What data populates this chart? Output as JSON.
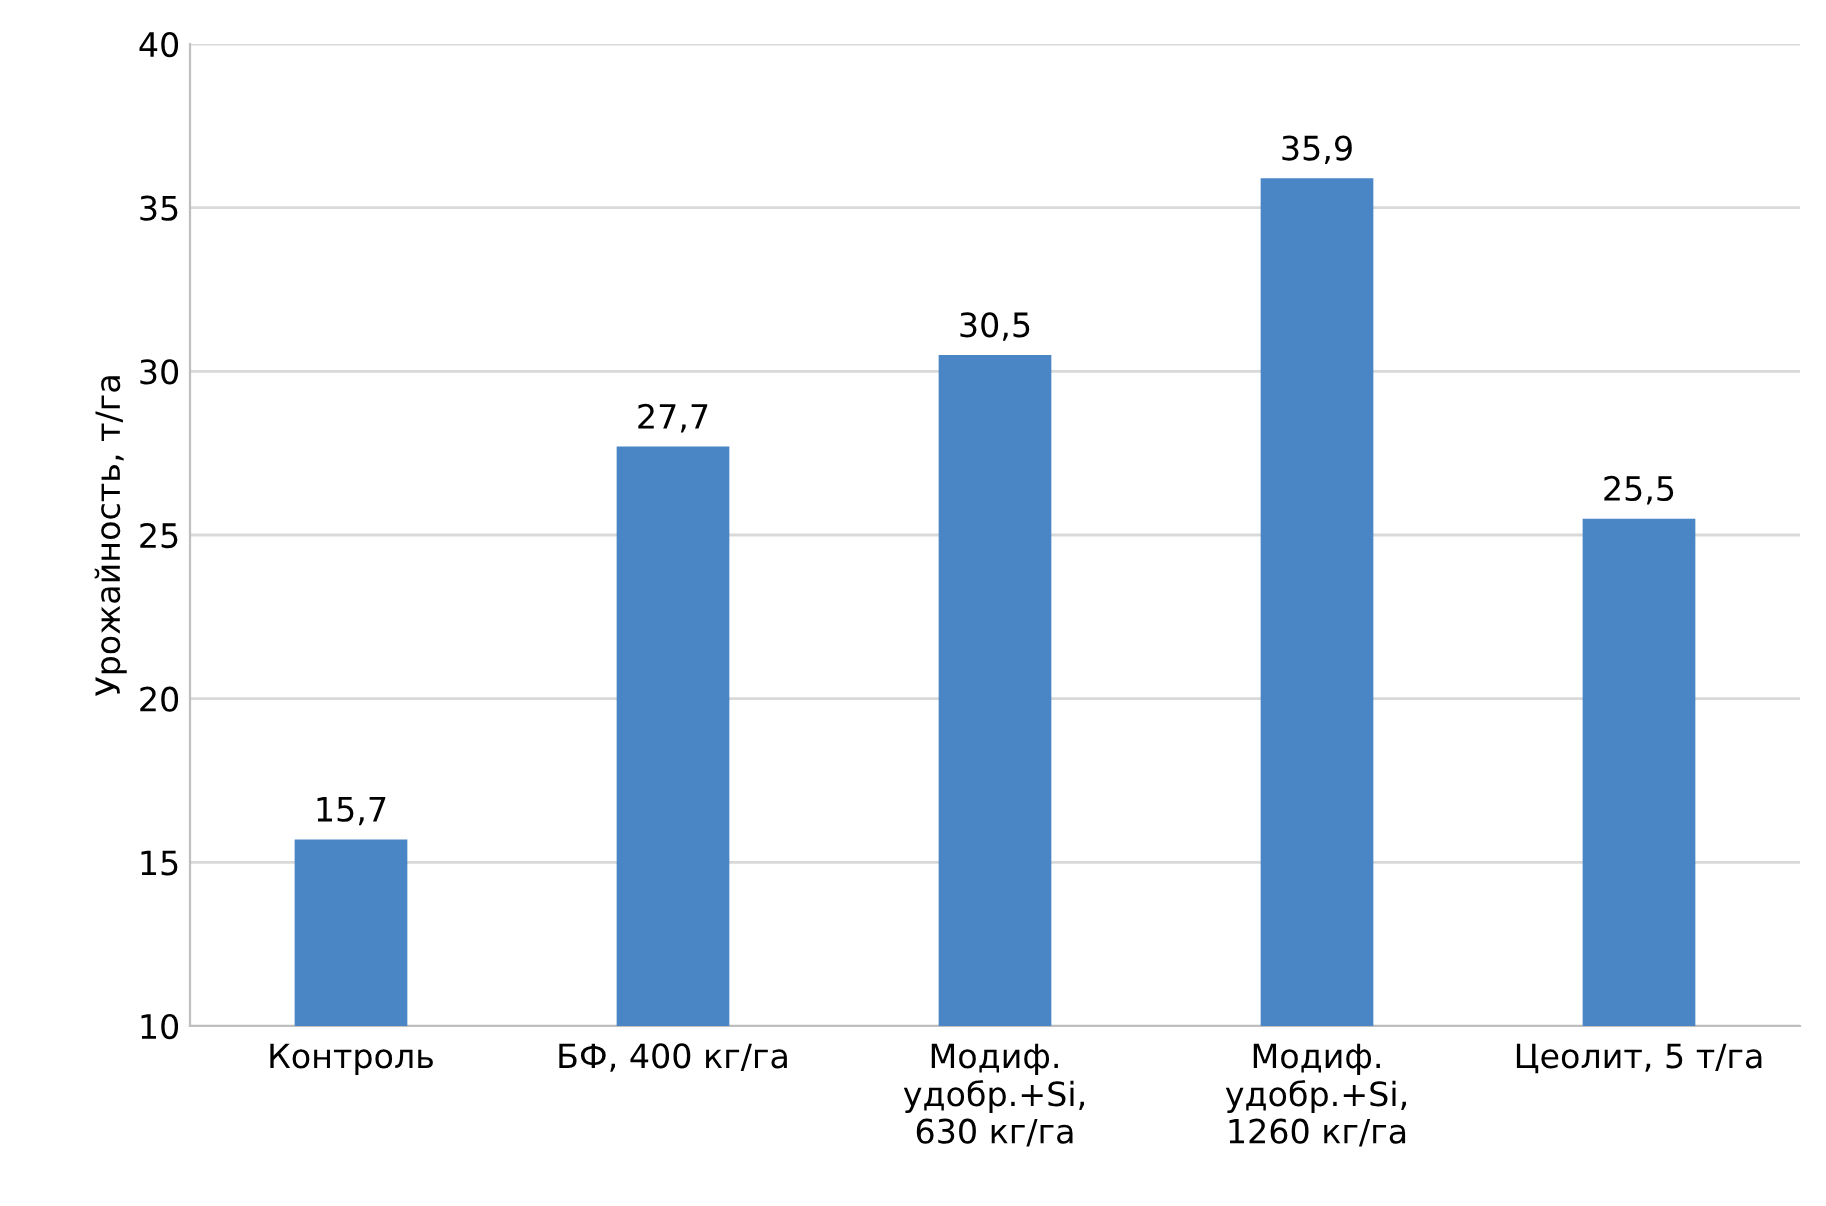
{
  "chart_data": {
    "type": "bar",
    "ylabel": "Урожайность, т/га",
    "categories": [
      "Контроль",
      "БФ, 400 кг/га",
      "Модиф.\nудобр.+Si,\n630 кг/га",
      "Модиф.\nудобр.+Si,\n1260 кг/га",
      "Цеолит, 5 т/га"
    ],
    "values": [
      15.7,
      27.7,
      30.5,
      35.9,
      25.5
    ],
    "value_labels": [
      "15,7",
      "27,7",
      "30,5",
      "35,9",
      "25,5"
    ],
    "color": "#4a86c6",
    "ylim": [
      10,
      40
    ],
    "yticks": [
      10,
      15,
      20,
      25,
      30,
      35,
      40
    ],
    "grid": "y"
  }
}
